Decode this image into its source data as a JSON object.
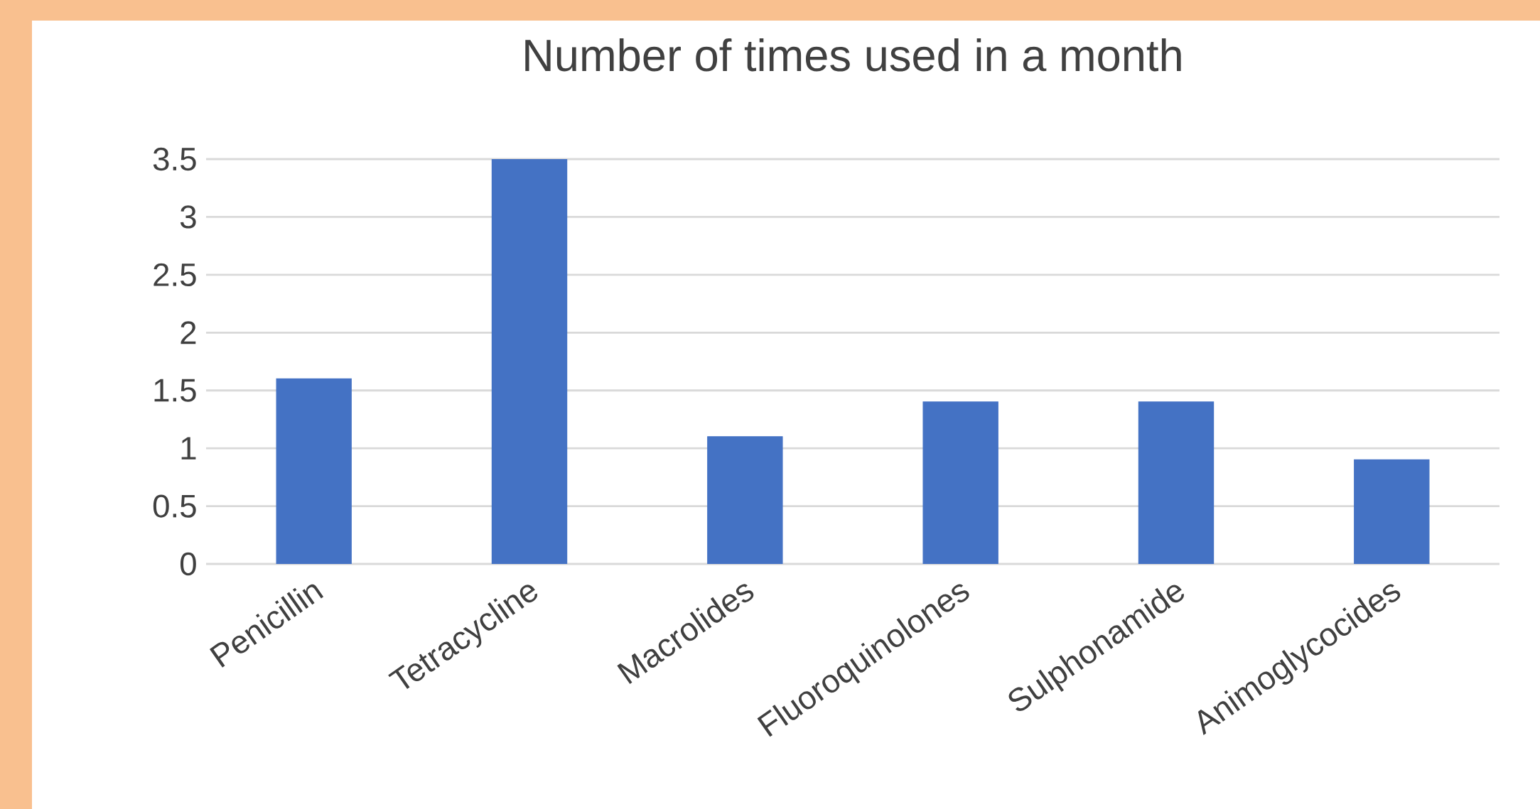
{
  "chart_data": {
    "type": "bar",
    "title": "Number of times used in a month",
    "categories": [
      "Penicillin",
      "Tetracycline",
      "Macrolides",
      "Fluoroquinolones",
      "Sulphonamide",
      "Animoglycocides"
    ],
    "values": [
      1.6,
      3.5,
      1.1,
      1.4,
      1.4,
      0.9
    ],
    "color": "#4472c4",
    "ylim": [
      0,
      3.5
    ],
    "yticks": [
      0,
      0.5,
      1,
      1.5,
      2,
      2.5,
      3,
      3.5
    ],
    "grid": "y"
  }
}
